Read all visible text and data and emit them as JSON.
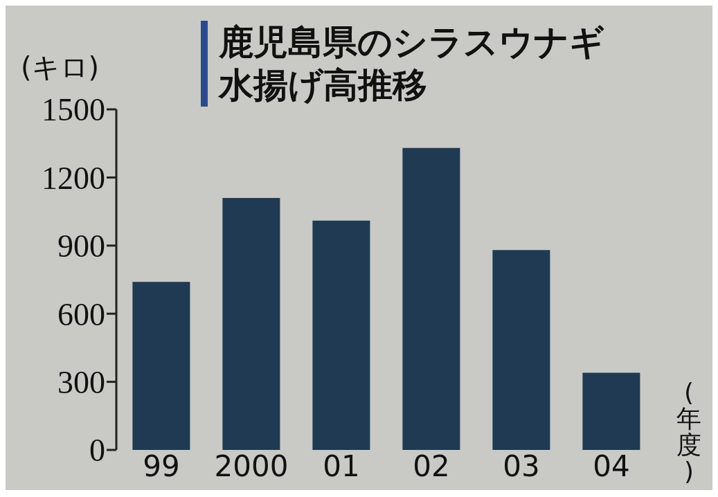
{
  "chart_data": {
    "type": "bar",
    "title": "鹿児島県のシラスウナギ水揚げ高推移",
    "ylabel": "(キロ)",
    "xlabel": "(年度)",
    "categories": [
      "99",
      "2000",
      "01",
      "02",
      "03",
      "04"
    ],
    "values": [
      740,
      1110,
      1010,
      1330,
      880,
      340
    ],
    "color": "#1f3a52",
    "ylim": [
      0,
      1500
    ],
    "yticks": [
      0,
      300,
      600,
      900,
      1200,
      1500
    ],
    "grid": false
  }
}
